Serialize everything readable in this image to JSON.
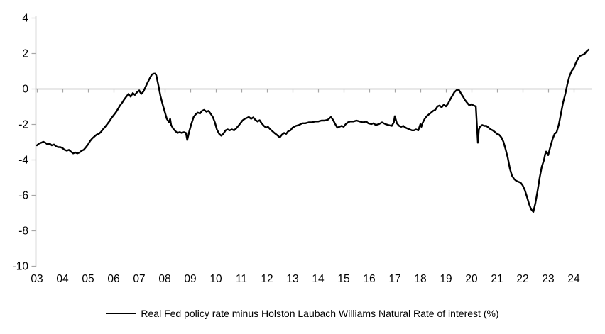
{
  "page": {
    "background": "#ffffff"
  },
  "chart_data": {
    "type": "line",
    "title": "",
    "xlabel": "",
    "ylabel": "",
    "ylim": [
      -10,
      4
    ],
    "xlim": [
      2003.0,
      2024.75
    ],
    "y_ticks": [
      4,
      2,
      0,
      -2,
      -4,
      -6,
      -8,
      -10
    ],
    "x_tick_labels": [
      "03",
      "04",
      "05",
      "06",
      "07",
      "08",
      "09",
      "10",
      "11",
      "12",
      "13",
      "14",
      "15",
      "16",
      "17",
      "18",
      "19",
      "20",
      "21",
      "22",
      "23",
      "24"
    ],
    "x_tick_years": [
      2003,
      2004,
      2005,
      2006,
      2007,
      2008,
      2009,
      2010,
      2011,
      2012,
      2013,
      2014,
      2015,
      2016,
      2017,
      2018,
      2019,
      2020,
      2021,
      2022,
      2023,
      2024
    ],
    "grid": "zero-gridline-only",
    "legend_position": "bottom-center",
    "axis_color": "#a6a6a6",
    "line_color": "#000000",
    "tick_label_color": "#000000",
    "series": [
      {
        "name": "Real Fed policy rate minus Holston Laubach Williams Natural Rate of interest (%)",
        "points": [
          [
            2003.0,
            -3.2
          ],
          [
            2003.08,
            -3.1
          ],
          [
            2003.17,
            -3.05
          ],
          [
            2003.25,
            -3.0
          ],
          [
            2003.33,
            -3.05
          ],
          [
            2003.42,
            -3.15
          ],
          [
            2003.5,
            -3.1
          ],
          [
            2003.58,
            -3.2
          ],
          [
            2003.67,
            -3.15
          ],
          [
            2003.75,
            -3.25
          ],
          [
            2003.83,
            -3.3
          ],
          [
            2003.92,
            -3.3
          ],
          [
            2004.0,
            -3.35
          ],
          [
            2004.08,
            -3.45
          ],
          [
            2004.17,
            -3.5
          ],
          [
            2004.25,
            -3.45
          ],
          [
            2004.33,
            -3.55
          ],
          [
            2004.42,
            -3.65
          ],
          [
            2004.5,
            -3.6
          ],
          [
            2004.58,
            -3.65
          ],
          [
            2004.67,
            -3.6
          ],
          [
            2004.75,
            -3.5
          ],
          [
            2004.83,
            -3.45
          ],
          [
            2004.92,
            -3.3
          ],
          [
            2005.0,
            -3.15
          ],
          [
            2005.08,
            -2.95
          ],
          [
            2005.17,
            -2.8
          ],
          [
            2005.25,
            -2.7
          ],
          [
            2005.33,
            -2.6
          ],
          [
            2005.42,
            -2.55
          ],
          [
            2005.5,
            -2.45
          ],
          [
            2005.58,
            -2.3
          ],
          [
            2005.67,
            -2.15
          ],
          [
            2005.75,
            -2.0
          ],
          [
            2005.83,
            -1.85
          ],
          [
            2005.92,
            -1.65
          ],
          [
            2006.0,
            -1.5
          ],
          [
            2006.08,
            -1.35
          ],
          [
            2006.17,
            -1.15
          ],
          [
            2006.25,
            -0.95
          ],
          [
            2006.33,
            -0.8
          ],
          [
            2006.42,
            -0.6
          ],
          [
            2006.5,
            -0.45
          ],
          [
            2006.58,
            -0.3
          ],
          [
            2006.67,
            -0.45
          ],
          [
            2006.75,
            -0.25
          ],
          [
            2006.83,
            -0.35
          ],
          [
            2006.92,
            -0.2
          ],
          [
            2007.0,
            -0.1
          ],
          [
            2007.08,
            -0.3
          ],
          [
            2007.17,
            -0.15
          ],
          [
            2007.25,
            0.1
          ],
          [
            2007.33,
            0.35
          ],
          [
            2007.42,
            0.6
          ],
          [
            2007.5,
            0.8
          ],
          [
            2007.58,
            0.85
          ],
          [
            2007.63,
            0.85
          ],
          [
            2007.67,
            0.75
          ],
          [
            2007.75,
            0.2
          ],
          [
            2007.83,
            -0.4
          ],
          [
            2007.92,
            -0.9
          ],
          [
            2008.0,
            -1.3
          ],
          [
            2008.08,
            -1.7
          ],
          [
            2008.17,
            -1.9
          ],
          [
            2008.21,
            -1.7
          ],
          [
            2008.25,
            -2.05
          ],
          [
            2008.33,
            -2.25
          ],
          [
            2008.42,
            -2.4
          ],
          [
            2008.5,
            -2.5
          ],
          [
            2008.58,
            -2.45
          ],
          [
            2008.67,
            -2.5
          ],
          [
            2008.75,
            -2.45
          ],
          [
            2008.83,
            -2.5
          ],
          [
            2008.88,
            -2.9
          ],
          [
            2008.96,
            -2.4
          ],
          [
            2009.04,
            -2.0
          ],
          [
            2009.13,
            -1.6
          ],
          [
            2009.21,
            -1.45
          ],
          [
            2009.29,
            -1.35
          ],
          [
            2009.38,
            -1.4
          ],
          [
            2009.46,
            -1.25
          ],
          [
            2009.54,
            -1.2
          ],
          [
            2009.63,
            -1.3
          ],
          [
            2009.71,
            -1.25
          ],
          [
            2009.79,
            -1.4
          ],
          [
            2009.88,
            -1.6
          ],
          [
            2009.96,
            -1.9
          ],
          [
            2010.04,
            -2.3
          ],
          [
            2010.13,
            -2.55
          ],
          [
            2010.21,
            -2.65
          ],
          [
            2010.29,
            -2.55
          ],
          [
            2010.38,
            -2.35
          ],
          [
            2010.46,
            -2.3
          ],
          [
            2010.54,
            -2.35
          ],
          [
            2010.63,
            -2.3
          ],
          [
            2010.71,
            -2.35
          ],
          [
            2010.79,
            -2.25
          ],
          [
            2010.88,
            -2.1
          ],
          [
            2010.96,
            -1.95
          ],
          [
            2011.04,
            -1.8
          ],
          [
            2011.13,
            -1.7
          ],
          [
            2011.21,
            -1.65
          ],
          [
            2011.29,
            -1.6
          ],
          [
            2011.38,
            -1.7
          ],
          [
            2011.46,
            -1.62
          ],
          [
            2011.54,
            -1.75
          ],
          [
            2011.63,
            -1.85
          ],
          [
            2011.71,
            -1.78
          ],
          [
            2011.79,
            -1.95
          ],
          [
            2011.88,
            -2.1
          ],
          [
            2011.96,
            -2.2
          ],
          [
            2012.04,
            -2.15
          ],
          [
            2012.13,
            -2.3
          ],
          [
            2012.21,
            -2.4
          ],
          [
            2012.29,
            -2.5
          ],
          [
            2012.38,
            -2.6
          ],
          [
            2012.5,
            -2.75
          ],
          [
            2012.58,
            -2.6
          ],
          [
            2012.67,
            -2.5
          ],
          [
            2012.75,
            -2.55
          ],
          [
            2012.83,
            -2.4
          ],
          [
            2012.92,
            -2.35
          ],
          [
            2013.0,
            -2.2
          ],
          [
            2013.13,
            -2.1
          ],
          [
            2013.25,
            -2.05
          ],
          [
            2013.38,
            -1.95
          ],
          [
            2013.5,
            -1.95
          ],
          [
            2013.63,
            -1.9
          ],
          [
            2013.75,
            -1.9
          ],
          [
            2013.88,
            -1.85
          ],
          [
            2014.0,
            -1.85
          ],
          [
            2014.13,
            -1.8
          ],
          [
            2014.25,
            -1.8
          ],
          [
            2014.38,
            -1.75
          ],
          [
            2014.5,
            -1.6
          ],
          [
            2014.58,
            -1.75
          ],
          [
            2014.67,
            -2.0
          ],
          [
            2014.75,
            -2.2
          ],
          [
            2014.83,
            -2.15
          ],
          [
            2014.92,
            -2.1
          ],
          [
            2015.0,
            -2.15
          ],
          [
            2015.08,
            -2.0
          ],
          [
            2015.17,
            -1.9
          ],
          [
            2015.25,
            -1.85
          ],
          [
            2015.38,
            -1.85
          ],
          [
            2015.5,
            -1.8
          ],
          [
            2015.63,
            -1.85
          ],
          [
            2015.75,
            -1.9
          ],
          [
            2015.88,
            -1.85
          ],
          [
            2015.96,
            -1.95
          ],
          [
            2016.08,
            -2.0
          ],
          [
            2016.17,
            -1.95
          ],
          [
            2016.25,
            -2.05
          ],
          [
            2016.38,
            -2.0
          ],
          [
            2016.5,
            -1.9
          ],
          [
            2016.63,
            -2.0
          ],
          [
            2016.75,
            -2.05
          ],
          [
            2016.88,
            -2.1
          ],
          [
            2016.96,
            -1.9
          ],
          [
            2017.0,
            -1.55
          ],
          [
            2017.08,
            -1.95
          ],
          [
            2017.17,
            -2.1
          ],
          [
            2017.25,
            -2.15
          ],
          [
            2017.33,
            -2.1
          ],
          [
            2017.42,
            -2.2
          ],
          [
            2017.5,
            -2.25
          ],
          [
            2017.58,
            -2.3
          ],
          [
            2017.67,
            -2.35
          ],
          [
            2017.75,
            -2.35
          ],
          [
            2017.83,
            -2.3
          ],
          [
            2017.92,
            -2.35
          ],
          [
            2018.0,
            -2.0
          ],
          [
            2018.04,
            -2.15
          ],
          [
            2018.08,
            -1.95
          ],
          [
            2018.17,
            -1.7
          ],
          [
            2018.25,
            -1.55
          ],
          [
            2018.33,
            -1.45
          ],
          [
            2018.42,
            -1.35
          ],
          [
            2018.5,
            -1.25
          ],
          [
            2018.58,
            -1.2
          ],
          [
            2018.67,
            -1.0
          ],
          [
            2018.75,
            -0.95
          ],
          [
            2018.83,
            -1.05
          ],
          [
            2018.92,
            -0.9
          ],
          [
            2019.0,
            -1.0
          ],
          [
            2019.08,
            -0.85
          ],
          [
            2019.17,
            -0.6
          ],
          [
            2019.25,
            -0.4
          ],
          [
            2019.33,
            -0.2
          ],
          [
            2019.42,
            -0.08
          ],
          [
            2019.5,
            -0.05
          ],
          [
            2019.58,
            -0.25
          ],
          [
            2019.67,
            -0.45
          ],
          [
            2019.75,
            -0.65
          ],
          [
            2019.83,
            -0.8
          ],
          [
            2019.92,
            -0.95
          ],
          [
            2020.0,
            -0.88
          ],
          [
            2020.08,
            -0.95
          ],
          [
            2020.17,
            -1.0
          ],
          [
            2020.25,
            -3.05
          ],
          [
            2020.29,
            -2.3
          ],
          [
            2020.33,
            -2.15
          ],
          [
            2020.42,
            -2.05
          ],
          [
            2020.5,
            -2.1
          ],
          [
            2020.58,
            -2.1
          ],
          [
            2020.67,
            -2.2
          ],
          [
            2020.75,
            -2.3
          ],
          [
            2020.83,
            -2.35
          ],
          [
            2020.92,
            -2.45
          ],
          [
            2021.0,
            -2.55
          ],
          [
            2021.08,
            -2.6
          ],
          [
            2021.17,
            -2.75
          ],
          [
            2021.25,
            -3.0
          ],
          [
            2021.33,
            -3.4
          ],
          [
            2021.42,
            -3.9
          ],
          [
            2021.5,
            -4.5
          ],
          [
            2021.58,
            -4.9
          ],
          [
            2021.67,
            -5.1
          ],
          [
            2021.75,
            -5.2
          ],
          [
            2021.83,
            -5.25
          ],
          [
            2021.92,
            -5.3
          ],
          [
            2022.0,
            -5.45
          ],
          [
            2022.08,
            -5.7
          ],
          [
            2022.17,
            -6.1
          ],
          [
            2022.25,
            -6.5
          ],
          [
            2022.33,
            -6.8
          ],
          [
            2022.42,
            -6.95
          ],
          [
            2022.5,
            -6.45
          ],
          [
            2022.58,
            -5.8
          ],
          [
            2022.67,
            -5.0
          ],
          [
            2022.75,
            -4.4
          ],
          [
            2022.83,
            -4.05
          ],
          [
            2022.88,
            -3.7
          ],
          [
            2022.92,
            -3.55
          ],
          [
            2023.0,
            -3.75
          ],
          [
            2023.08,
            -3.3
          ],
          [
            2023.17,
            -2.85
          ],
          [
            2023.25,
            -2.55
          ],
          [
            2023.33,
            -2.45
          ],
          [
            2023.42,
            -2.0
          ],
          [
            2023.5,
            -1.4
          ],
          [
            2023.58,
            -0.8
          ],
          [
            2023.67,
            -0.3
          ],
          [
            2023.75,
            0.25
          ],
          [
            2023.83,
            0.7
          ],
          [
            2023.92,
            1.0
          ],
          [
            2024.0,
            1.15
          ],
          [
            2024.08,
            1.45
          ],
          [
            2024.17,
            1.7
          ],
          [
            2024.25,
            1.85
          ],
          [
            2024.33,
            1.9
          ],
          [
            2024.42,
            1.95
          ],
          [
            2024.5,
            2.1
          ],
          [
            2024.58,
            2.2
          ]
        ]
      }
    ]
  }
}
